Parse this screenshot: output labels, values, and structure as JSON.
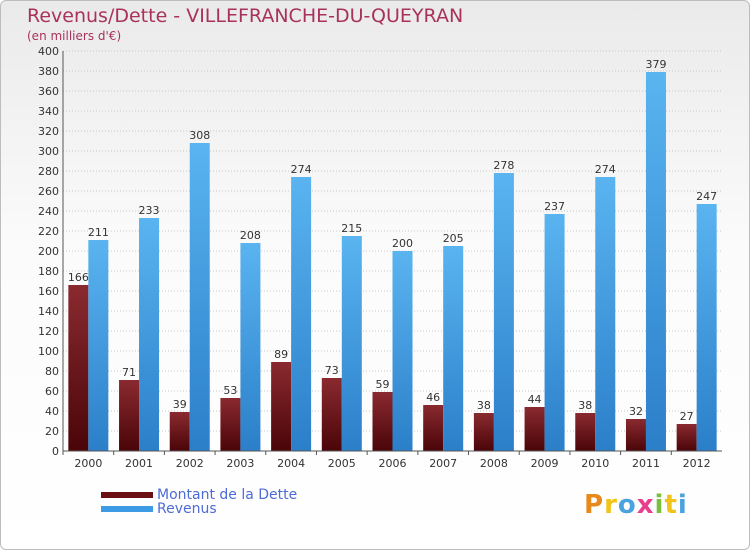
{
  "header": {
    "title": "Revenus/Dette - VILLEFRANCHE-DU-QUEYRAN",
    "subtitle": "(en milliers d'€)"
  },
  "legend": {
    "items": [
      {
        "label": "Montant de la Dette",
        "color": "#6b0f15"
      },
      {
        "label": "Revenus",
        "color": "#3d9be6"
      }
    ]
  },
  "logo": {
    "letters": [
      "P",
      "r",
      "o",
      "x",
      "i",
      "t",
      "i"
    ],
    "colors": [
      "#e8891c",
      "#f0c419",
      "#4aa3df",
      "#e83f8c",
      "#7bbf3e",
      "#f0c419",
      "#4aa3df"
    ]
  },
  "chart_data": {
    "type": "bar",
    "title": "Revenus/Dette - VILLEFRANCHE-DU-QUEYRAN",
    "ylabel": "(en milliers d'€)",
    "categories": [
      "2000",
      "2001",
      "2002",
      "2003",
      "2004",
      "2005",
      "2006",
      "2007",
      "2008",
      "2009",
      "2010",
      "2011",
      "2012"
    ],
    "series": [
      {
        "name": "Montant de la Dette",
        "color": "#6b0f15",
        "values": [
          166,
          71,
          39,
          53,
          89,
          73,
          59,
          46,
          38,
          44,
          38,
          32,
          27
        ]
      },
      {
        "name": "Revenus",
        "color": "#3d9be6",
        "values": [
          211,
          233,
          308,
          208,
          274,
          215,
          200,
          205,
          278,
          237,
          274,
          379,
          247
        ]
      }
    ],
    "ylim": [
      0,
      400
    ],
    "ytick_step": 20,
    "grid": true,
    "legend_position": "bottom-left"
  }
}
